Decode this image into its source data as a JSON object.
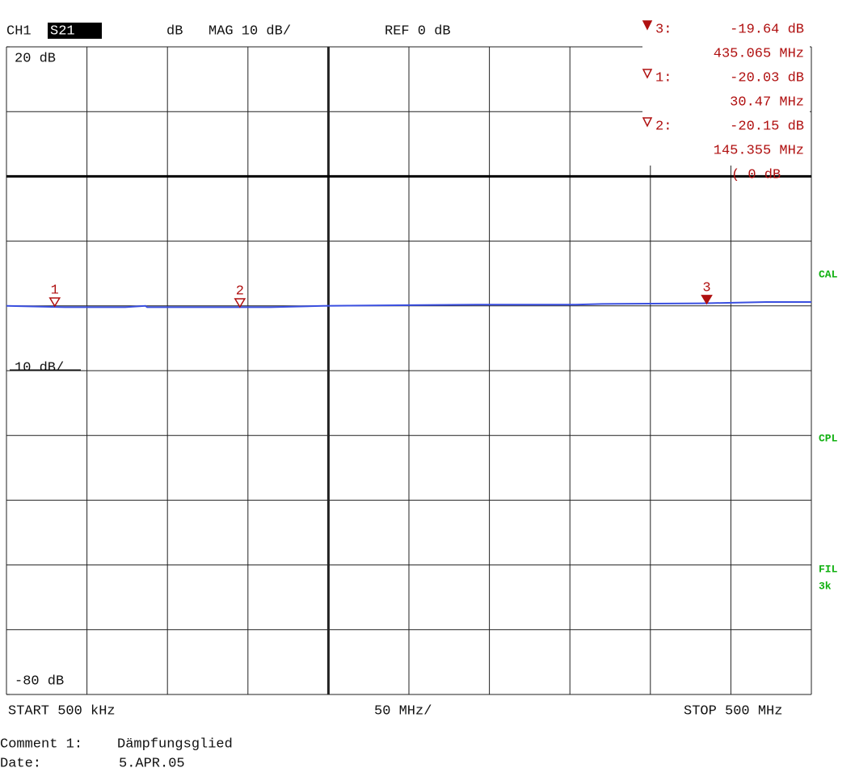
{
  "chart_data": {
    "type": "line",
    "channel": "CH1",
    "parameter": "S21",
    "format_unit": "dB",
    "scale_label": "MAG 10 dB/",
    "ref_label": "REF 0 dB",
    "ref_value": 0,
    "ref_marker_label": "( 0 dB",
    "ylim": [
      -80,
      20
    ],
    "yticks": [
      {
        "value": 20,
        "label": "20 dB"
      },
      {
        "value": -80,
        "label": "-80 dB"
      }
    ],
    "y_scale_label": "10 dB/",
    "xlim": [
      0.5,
      500
    ],
    "x_start_label": "START 500 kHz",
    "x_scale_label": "50 MHz/",
    "x_stop_label": "STOP 500 MHz",
    "color": "#3a4fe0",
    "x": [
      0.5,
      36.6,
      74.2,
      86.8,
      87.8,
      164.5,
      197.1,
      292.4,
      353.6,
      370,
      432.8,
      471.9,
      500
    ],
    "values": [
      -20.0,
      -20.2,
      -20.2,
      -20.0,
      -20.2,
      -20.2,
      -20.0,
      -19.8,
      -19.8,
      -19.7,
      -19.6,
      -19.4,
      -19.4
    ],
    "marker_color": "#b01010",
    "markers": [
      {
        "name": "3",
        "readout": "3:",
        "x": 435.065,
        "value": -19.64,
        "value_label": "-19.64 dB",
        "x_label": "435.065 MHz",
        "active": true
      },
      {
        "name": "1",
        "readout": "1:",
        "x": 30.47,
        "value": -20.03,
        "value_label": "-20.03 dB",
        "x_label": "30.47 MHz",
        "active": false
      },
      {
        "name": "2",
        "readout": "2:",
        "x": 145.355,
        "value": -20.15,
        "value_label": "-20.15 dB",
        "x_label": "145.355 MHz",
        "active": false
      }
    ],
    "side_labels": [
      "CAL",
      "CPL",
      "FIL",
      "3k"
    ],
    "comment": {
      "label": "Comment 1:",
      "text": "Dämpfungsglied"
    },
    "date": {
      "label": "Date:",
      "text": "5.APR.05"
    }
  }
}
